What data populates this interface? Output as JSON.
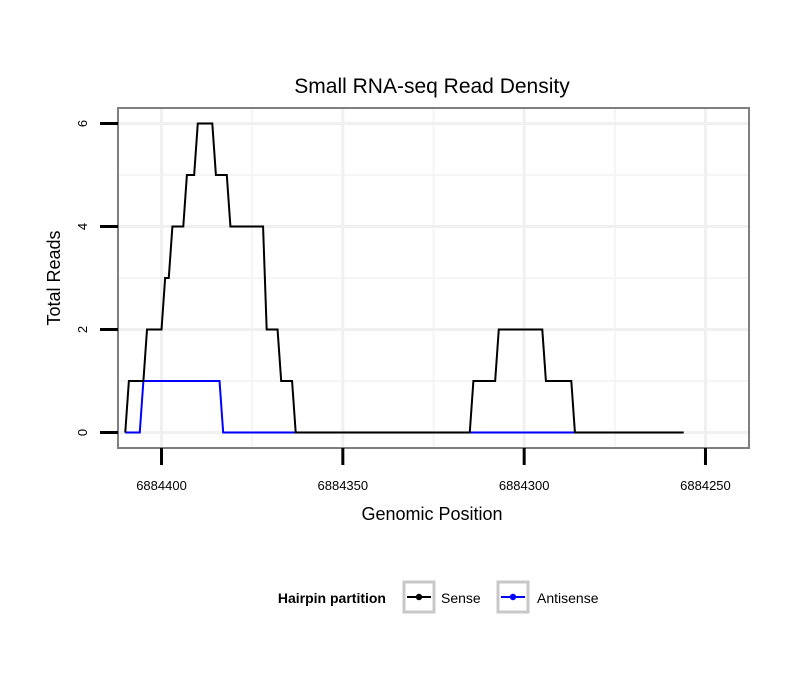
{
  "chart_data": {
    "type": "line",
    "title": "Small RNA-seq Read Density",
    "xlabel": "Genomic Position",
    "ylabel": "Total Reads",
    "x_reversed": true,
    "xlim": [
      6884412,
      6884238
    ],
    "ylim": [
      -0.3,
      6.3
    ],
    "x_ticks": [
      6884400,
      6884350,
      6884300,
      6884250
    ],
    "x_tick_labels": [
      "6884400",
      "6884350",
      "6884300",
      "6884250"
    ],
    "y_ticks": [
      0,
      2,
      4,
      6
    ],
    "y_tick_labels": [
      "0",
      "2",
      "4",
      "6"
    ],
    "grid": true,
    "legend": {
      "title": "Hairpin partition",
      "position": "bottom",
      "entries": [
        {
          "name": "Sense",
          "color": "#000000"
        },
        {
          "name": "Antisense",
          "color": "#0000ff"
        }
      ]
    },
    "series": [
      {
        "name": "Sense",
        "color": "#000000",
        "x": [
          6884410,
          6884409,
          6884405,
          6884404,
          6884400,
          6884399,
          6884398,
          6884397,
          6884394,
          6884393,
          6884391,
          6884390,
          6884386,
          6884385,
          6884382,
          6884381,
          6884372,
          6884371,
          6884368,
          6884367,
          6884364,
          6884363,
          6884315,
          6884314,
          6884308,
          6884307,
          6884295,
          6884294,
          6884287,
          6884286,
          6884256
        ],
        "y": [
          0,
          1,
          1,
          2,
          2,
          3,
          3,
          4,
          4,
          5,
          5,
          6,
          6,
          5,
          5,
          4,
          4,
          2,
          2,
          1,
          1,
          0,
          0,
          1,
          1,
          2,
          2,
          1,
          1,
          0,
          0
        ]
      },
      {
        "name": "Antisense",
        "color": "#0000ff",
        "x": [
          6884410,
          6884406,
          6884405,
          6884384,
          6884383,
          6884286
        ],
        "y": [
          0,
          0,
          1,
          1,
          0,
          0
        ]
      }
    ]
  }
}
